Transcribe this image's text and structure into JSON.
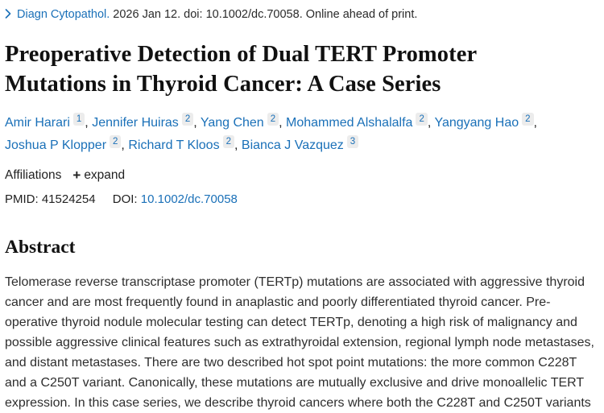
{
  "citation": {
    "journal": "Diagn Cytopathol.",
    "rest": "2026 Jan 12. doi: 10.1002/dc.70058. Online ahead of print."
  },
  "title": "Preoperative Detection of Dual TERT Promoter Mutations in Thyroid Cancer: A Case Series",
  "authors": [
    {
      "name": "Amir Harari",
      "sup": "1"
    },
    {
      "name": "Jennifer Huiras",
      "sup": "2"
    },
    {
      "name": "Yang Chen",
      "sup": "2"
    },
    {
      "name": "Mohammed Alshalalfa",
      "sup": "2"
    },
    {
      "name": "Yangyang Hao",
      "sup": "2"
    },
    {
      "name": "Joshua P Klopper",
      "sup": "2"
    },
    {
      "name": "Richard T Kloos",
      "sup": "2"
    },
    {
      "name": "Bianca J Vazquez",
      "sup": "3"
    }
  ],
  "affiliations": {
    "label": "Affiliations",
    "expand_icon": "+",
    "expand_label": "expand"
  },
  "ids": {
    "pmid_label": "PMID:",
    "pmid": "41524254",
    "doi_label": "DOI:",
    "doi": "10.1002/dc.70058"
  },
  "abstract": {
    "heading": "Abstract",
    "lines": [
      "Telomerase reverse transcriptase promoter (TERTp) mutations are associated with aggressive thyroid",
      "cancer and are most frequently found in anaplastic and poorly differentiated thyroid cancer. Pre-",
      "operative thyroid nodule molecular testing can detect TERTp, denoting a high risk of malignancy and",
      "possible aggressive clinical features such as extrathyroidal extension, regional lymph node metastases,",
      "and distant metastases. There are two described hot spot point mutations: the more common C228T",
      "and a C250T variant. Canonically, these mutations are mutually exclusive and drive monoallelic TERT",
      "expression. In this case series, we describe thyroid cancers where both the C228T and C250T variants"
    ]
  },
  "colors": {
    "link_blue": "#1a70b8",
    "text_dark": "#212121",
    "sup_background": "#ececec"
  }
}
